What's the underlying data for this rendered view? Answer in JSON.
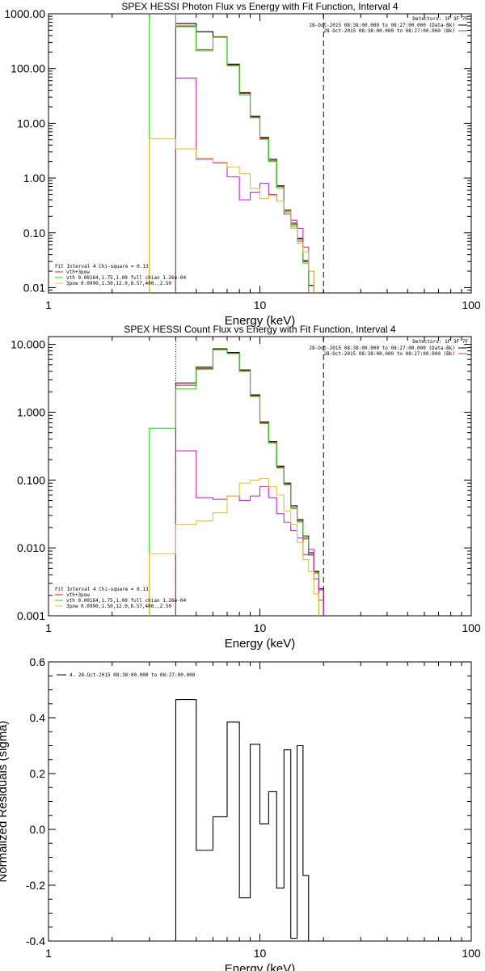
{
  "colors": {
    "black": "#000000",
    "red": "#e0201c",
    "green": "#23d823",
    "magenta": "#d11fd1",
    "yellow": "#e5c12c"
  },
  "chart_data": [
    {
      "type": "line",
      "title": "SPEX HESSI Photon Flux vs Energy with Fit Function, Interval 4",
      "xlabel": "Energy (keV)",
      "ylabel": "",
      "xscale": "log",
      "yscale": "log",
      "xlim": [
        1,
        100
      ],
      "ylim": [
        0.008,
        1000
      ],
      "xticks": [
        1,
        10,
        100
      ],
      "xtick_labels": [
        "1",
        "10",
        "100"
      ],
      "yticks": [
        0.01,
        0.1,
        1,
        10,
        100,
        1000
      ],
      "ytick_labels": [
        "0.01",
        "0.10",
        "1.00",
        "10.00",
        "100.00",
        "1000.00"
      ],
      "edges": [
        3.0,
        4.0,
        5.0,
        6.0,
        7.0,
        8.0,
        9.0,
        10.0,
        11.0,
        12.0,
        13.0,
        14.0,
        15.0,
        16.0,
        17.0,
        18.0,
        19.0,
        20.0,
        22.0
      ],
      "vlines": [
        {
          "x": 4.0,
          "style": "dotted",
          "color": "#d11fd1"
        },
        {
          "x": 20.0,
          "style": "dashed",
          "color": "#000000"
        }
      ],
      "legend_top": {
        "header": "Detectors: 1F 3F 7F",
        "entries": [
          {
            "label": "28-Oct-2015 08:38:00.000 to 08:27:00.000 (Data-Bk)",
            "color": "#000000"
          },
          {
            "label": "28-Oct-2015 08:38:00.000 to 08:27:00.000 (Bk)",
            "color": "#d11fd1"
          }
        ]
      },
      "legend_bottom": {
        "header": "Fit Interval 4   Chi-square = 0.13",
        "entries": [
          {
            "label": "vth+3pow",
            "color": "#e0201c"
          },
          {
            "label": "vth 0.00164,1.75,1.00  full chian 1.26e-04",
            "color": "#23d823"
          },
          {
            "label": "3pow 0.0990,1.50,12.0,8.57,400.,2.50",
            "color": "#e5c12c"
          }
        ]
      },
      "series": [
        {
          "color": "#000000",
          "x_start": 4.0,
          "values": [
            660,
            470,
            380,
            120,
            36,
            13.5,
            5.5,
            2.2,
            0.72,
            0.26,
            0.15,
            0.08,
            0.031,
            0.011
          ]
        },
        {
          "color": "#e0201c",
          "x_start": 4.0,
          "values": [
            600,
            220,
            380,
            115,
            35,
            13.0,
            5.3,
            2.1,
            0.7,
            0.25,
            0.14,
            0.075,
            0.03
          ]
        },
        {
          "color": "#23d823",
          "x_start": 3.0,
          "values": [
            1500,
            580,
            210,
            370,
            112,
            33,
            12.5,
            5.1,
            2.0,
            0.66,
            0.24,
            0.13,
            0.07,
            0.028
          ]
        },
        {
          "color": "#d11fd1",
          "x_start": 4.0,
          "values": [
            67,
            2.2,
            1.9,
            1.05,
            0.4,
            0.55,
            0.8,
            0.5,
            0.38,
            0.22,
            0.17,
            0.12,
            0.055,
            0.02
          ]
        },
        {
          "color": "#e5c12c",
          "x_start": 3.0,
          "values": [
            5.2,
            3.4,
            2.3,
            1.95,
            1.6,
            1.2,
            0.65,
            0.42,
            0.48,
            0.38,
            0.25,
            0.12,
            0.065,
            0.045,
            0.02
          ]
        }
      ]
    },
    {
      "type": "line",
      "title": "SPEX HESSI Count Flux vs Energy with Fit Function, Interval 4",
      "xlabel": "Energy (keV)",
      "ylabel": "",
      "xscale": "log",
      "yscale": "log",
      "xlim": [
        1,
        100
      ],
      "ylim": [
        0.001,
        13
      ],
      "xticks": [
        1,
        10,
        100
      ],
      "xtick_labels": [
        "1",
        "10",
        "100"
      ],
      "yticks": [
        0.001,
        0.01,
        0.1,
        1,
        10
      ],
      "ytick_labels": [
        "0.001",
        "0.010",
        "0.100",
        "1.000",
        "10.000"
      ],
      "edges": [
        3.0,
        4.0,
        5.0,
        6.0,
        7.0,
        8.0,
        9.0,
        10.0,
        11.0,
        12.0,
        13.0,
        14.0,
        15.0,
        16.0,
        17.0,
        18.0,
        19.0,
        20.0,
        22.0
      ],
      "vlines": [
        {
          "x": 4.0,
          "style": "dotted",
          "color": "#000000"
        },
        {
          "x": 20.0,
          "style": "dashed",
          "color": "#000000"
        }
      ],
      "legend_top": {
        "header": "Detectors: 1F 3F 7F",
        "entries": [
          {
            "label": "28-Oct-2015 08:38:00.000 to 08:27:00.000 (Data-Bk)",
            "color": "#000000"
          },
          {
            "label": "28-Oct-2015 08:38:00.000 to 08:27:00.000 (Bk)",
            "color": "#d11fd1"
          }
        ]
      },
      "legend_bottom": {
        "header": "Fit Interval 4   Chi-square = 0.13",
        "entries": [
          {
            "label": "vth+3pow",
            "color": "#e0201c"
          },
          {
            "label": "vth 0.00164,1.75,1.00  full chian 1.26e-04",
            "color": "#23d823"
          },
          {
            "label": "3pow 0.0990,1.50,12.0,8.57,400.,2.50",
            "color": "#e5c12c"
          }
        ]
      },
      "series": [
        {
          "color": "#000000",
          "x_start": 4.0,
          "values": [
            2.7,
            4.6,
            8.6,
            7.6,
            4.2,
            1.8,
            0.72,
            0.37,
            0.16,
            0.09,
            0.042,
            0.026,
            0.015,
            0.0085,
            0.0045,
            0.0025
          ]
        },
        {
          "color": "#e0201c",
          "x_start": 4.0,
          "values": [
            2.5,
            4.4,
            8.4,
            7.4,
            4.1,
            1.75,
            0.7,
            0.36,
            0.155,
            0.088,
            0.04,
            0.025,
            0.014,
            0.008,
            0.0044,
            0.0024
          ]
        },
        {
          "color": "#23d823",
          "x_start": 3.0,
          "values": [
            0.58,
            2.2,
            4.3,
            8.3,
            7.3,
            4.0,
            1.7,
            0.68,
            0.35,
            0.15,
            0.085,
            0.038,
            0.024,
            0.0135,
            0.0078,
            0.0042
          ]
        },
        {
          "color": "#d11fd1",
          "x_start": 4.0,
          "values": [
            0.27,
            0.055,
            0.052,
            0.058,
            0.05,
            0.058,
            0.08,
            0.055,
            0.032,
            0.024,
            0.018,
            0.014,
            0.008,
            0.0095,
            0.0035,
            0.0017
          ]
        },
        {
          "color": "#e5c12c",
          "x_start": 3.0,
          "values": [
            0.0082,
            0.022,
            0.025,
            0.033,
            0.058,
            0.09,
            0.1,
            0.105,
            0.08,
            0.06,
            0.035,
            0.022,
            0.012,
            0.0067,
            0.0045,
            0.0021
          ]
        }
      ]
    },
    {
      "type": "line",
      "title": "",
      "xlabel": "Energy (keV)",
      "ylabel": "Normalized Residuals (sigma)",
      "xscale": "log",
      "yscale": "linear",
      "xlim": [
        1,
        100
      ],
      "ylim": [
        -0.4,
        0.6
      ],
      "xticks": [
        1,
        10,
        100
      ],
      "xtick_labels": [
        "1",
        "10",
        "100"
      ],
      "yticks": [
        -0.4,
        -0.2,
        0.0,
        0.2,
        0.4,
        0.6
      ],
      "ytick_labels": [
        "-0.4",
        "-0.2",
        "0.0",
        "0.2",
        "0.4",
        "0.6"
      ],
      "legend": {
        "entries": [
          {
            "label": "4. 28-Oct-2015 08:38:00.000 to 08:27:00.000",
            "color": "#000000"
          }
        ]
      },
      "edges": [
        4.0,
        5.0,
        6.0,
        7.0,
        8.0,
        9.0,
        10.0,
        11.0,
        12.0,
        13.0,
        14.0,
        15.0,
        16.0,
        17.0,
        18.0,
        19.0,
        20.0
      ],
      "series": [
        {
          "color": "#000000",
          "values": [
            0.465,
            -0.075,
            0.045,
            0.385,
            -0.245,
            0.305,
            0.02,
            0.135,
            -0.21,
            0.285,
            -0.39,
            0.3,
            -0.165
          ]
        }
      ]
    }
  ]
}
